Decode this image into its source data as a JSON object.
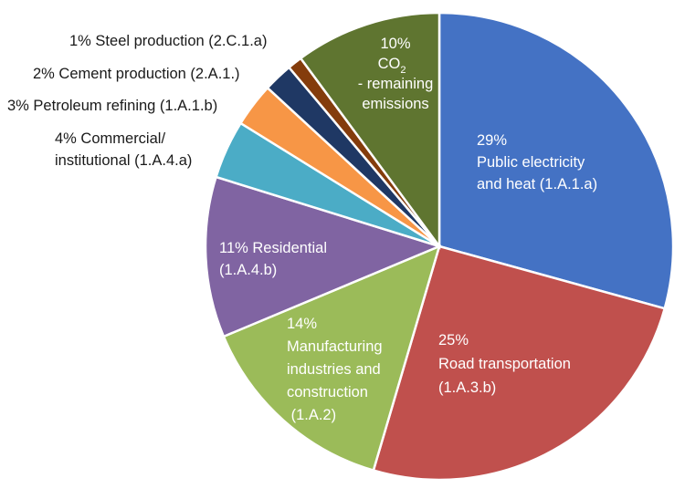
{
  "chart_data": {
    "type": "pie",
    "title": "",
    "start": "12 o'clock",
    "direction": "clockwise",
    "slices": [
      {
        "key": "public-electricity",
        "value": 29,
        "color": "#4472C4",
        "label_lines": [
          "29%",
          "Public electricity",
          "and heat (1.A.1.a)"
        ]
      },
      {
        "key": "road-transportation",
        "value": 25,
        "color": "#C0504D",
        "label_lines": [
          "25%",
          "Road transportation",
          "(1.A.3.b)"
        ]
      },
      {
        "key": "manufacturing",
        "value": 14,
        "color": "#9BBB59",
        "label_lines": [
          "14%",
          "Manufacturing",
          "industries and",
          "construction",
          " (1.A.2)"
        ]
      },
      {
        "key": "residential",
        "value": 11,
        "color": "#8064A2",
        "label_lines": [
          "11% Residential",
          "(1.A.4.b)"
        ]
      },
      {
        "key": "commercial",
        "value": 4,
        "color": "#4BACC6",
        "label_lines": [
          "4% Commercial/",
          "institutional (1.A.4.a)"
        ]
      },
      {
        "key": "petroleum-refining",
        "value": 3,
        "color": "#F79646",
        "label_lines": [
          "3% Petroleum refining (1.A.1.b)"
        ]
      },
      {
        "key": "cement-production",
        "value": 2,
        "color": "#1F3864",
        "label_lines": [
          "2% Cement production (2.A.1.)"
        ]
      },
      {
        "key": "steel-production",
        "value": 1,
        "color": "#843C0C",
        "label_lines": [
          "1% Steel production (2.C.1.a)"
        ]
      },
      {
        "key": "remaining-co2",
        "value": 10,
        "color": "#5F7530",
        "label_lines": [
          "10%",
          "CO",
          "- remaining",
          "emissions"
        ],
        "label_subscript": "2"
      }
    ]
  }
}
